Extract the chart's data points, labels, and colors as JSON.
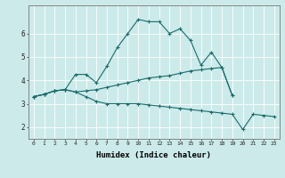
{
  "xlabel": "Humidex (Indice chaleur)",
  "bg_color": "#cceaea",
  "grid_color": "#ffffff",
  "line_color": "#1a6b6b",
  "xlim": [
    -0.5,
    23.5
  ],
  "ylim": [
    1.5,
    7.2
  ],
  "yticks": [
    2,
    3,
    4,
    5,
    6
  ],
  "xticks": [
    0,
    1,
    2,
    3,
    4,
    5,
    6,
    7,
    8,
    9,
    10,
    11,
    12,
    13,
    14,
    15,
    16,
    17,
    18,
    19,
    20,
    21,
    22,
    23
  ],
  "series": [
    [
      3.3,
      3.4,
      3.55,
      3.6,
      4.25,
      4.25,
      3.9,
      4.6,
      5.4,
      6.0,
      6.6,
      6.5,
      6.5,
      6.0,
      6.2,
      5.7,
      4.65,
      5.2,
      4.55,
      3.35,
      null,
      null,
      null,
      null
    ],
    [
      3.3,
      3.4,
      3.55,
      3.6,
      3.5,
      3.55,
      3.6,
      3.7,
      3.8,
      3.9,
      4.0,
      4.1,
      4.15,
      4.2,
      4.3,
      4.4,
      4.45,
      4.5,
      4.55,
      3.35,
      null,
      null,
      null,
      null
    ],
    [
      3.3,
      3.4,
      3.55,
      3.6,
      3.5,
      3.3,
      3.1,
      3.0,
      3.0,
      3.0,
      3.0,
      2.95,
      2.9,
      2.85,
      2.8,
      2.75,
      2.7,
      2.65,
      2.6,
      2.55,
      1.9,
      2.55,
      2.5,
      2.45
    ]
  ]
}
